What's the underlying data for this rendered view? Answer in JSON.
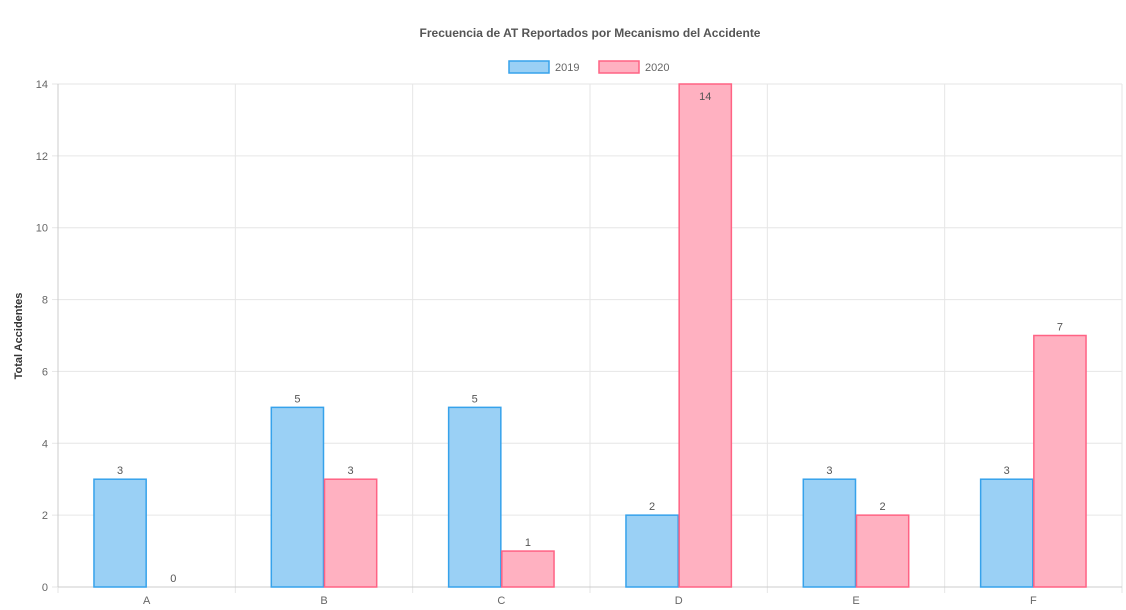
{
  "chart_data": {
    "type": "bar",
    "title": "Frecuencia de AT Reportados por Mecanismo del Accidente",
    "xlabel": "",
    "ylabel": "Total Accidentes",
    "categories": [
      "A",
      "B",
      "C",
      "D",
      "E",
      "F"
    ],
    "series": [
      {
        "name": "2019",
        "values": [
          3,
          5,
          5,
          2,
          3,
          3
        ],
        "color": "#36a2eb",
        "fill": "#9ad0f5"
      },
      {
        "name": "2020",
        "values": [
          0,
          3,
          1,
          14,
          2,
          7
        ],
        "color": "#ff6384",
        "fill": "#ffb1c1"
      }
    ],
    "ylim": [
      0,
      14
    ],
    "yticks": [
      0,
      2,
      4,
      6,
      8,
      10,
      12,
      14
    ],
    "grid": true,
    "legend_position": "top",
    "data_labels": true
  }
}
